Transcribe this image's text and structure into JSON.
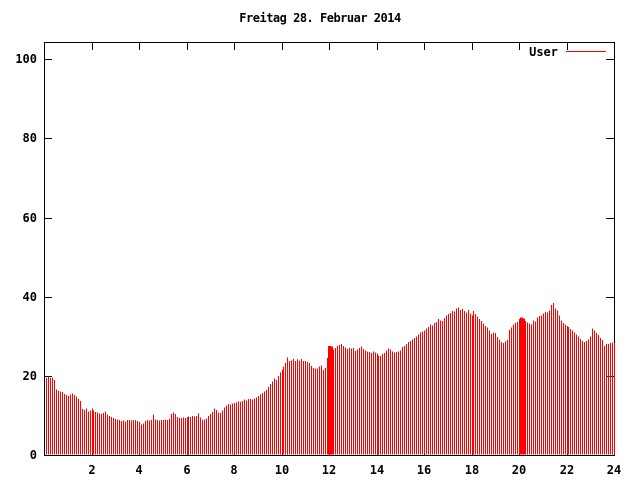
{
  "title": "Freitag 28. Februar 2014",
  "legend": {
    "label": "User",
    "position": "top-right"
  },
  "colors": {
    "series": "#ff0000",
    "axis": "#000000",
    "text": "#000000",
    "background": "#ffffff"
  },
  "chart_data": {
    "type": "bar",
    "style": "impulses",
    "title": "Freitag 28. Februar 2014",
    "xlabel": "",
    "ylabel": "",
    "x_unit": "hour of day",
    "sample_interval_minutes": 5,
    "xlim": [
      0,
      24
    ],
    "ylim": [
      0,
      104
    ],
    "x_ticks": [
      2,
      4,
      6,
      8,
      10,
      12,
      14,
      16,
      18,
      20,
      22,
      24
    ],
    "y_ticks": [
      0,
      20,
      40,
      60,
      80,
      100
    ],
    "grid": false,
    "legend_position": "top-right",
    "series": [
      {
        "name": "User",
        "color": "#ff0000",
        "first_sample_hour": 0.0833,
        "values": [
          19.5,
          19.8,
          19.4,
          19.6,
          18.9,
          16.6,
          16.2,
          16.0,
          15.9,
          15.4,
          15.1,
          14.9,
          15.3,
          15.6,
          15.2,
          14.8,
          14.1,
          13.6,
          11.6,
          11.4,
          11.7,
          11.0,
          11.3,
          11.8,
          11.2,
          10.9,
          10.7,
          10.5,
          10.4,
          10.6,
          11.0,
          10.2,
          9.9,
          9.6,
          9.4,
          9.1,
          9.0,
          8.8,
          8.6,
          8.7,
          8.5,
          8.8,
          8.9,
          8.7,
          8.9,
          8.8,
          8.6,
          8.4,
          7.7,
          7.9,
          8.6,
          8.8,
          8.7,
          8.9,
          10.2,
          9.0,
          8.8,
          8.7,
          8.9,
          8.8,
          9.0,
          8.9,
          9.1,
          10.4,
          10.7,
          10.3,
          9.6,
          9.4,
          9.3,
          9.5,
          9.4,
          9.6,
          9.7,
          9.6,
          9.8,
          9.7,
          9.9,
          10.5,
          9.5,
          8.9,
          9.0,
          9.2,
          9.8,
          10.4,
          10.9,
          11.7,
          11.4,
          10.8,
          10.6,
          11.2,
          12.0,
          12.5,
          12.9,
          12.7,
          13.0,
          13.1,
          13.3,
          13.5,
          13.4,
          13.7,
          14.0,
          13.8,
          14.1,
          14.2,
          14.0,
          14.3,
          14.5,
          14.9,
          15.3,
          15.7,
          16.1,
          16.4,
          17.2,
          18.0,
          18.6,
          19.3,
          19.0,
          20.0,
          20.8,
          21.5,
          22.3,
          23.3,
          24.6,
          23.7,
          23.9,
          24.2,
          23.8,
          24.1,
          23.9,
          24.3,
          23.8,
          23.8,
          23.5,
          23.2,
          22.5,
          22.0,
          21.8,
          21.9,
          22.3,
          22.6,
          21.5,
          22.0,
          24.5,
          27.6,
          27.4,
          26.7,
          27.0,
          27.5,
          27.8,
          28.0,
          27.6,
          27.2,
          26.8,
          27.0,
          26.9,
          27.0,
          26.3,
          26.6,
          27.0,
          27.4,
          26.8,
          26.4,
          26.2,
          26.0,
          25.8,
          26.1,
          25.9,
          25.6,
          25.2,
          25.0,
          25.5,
          25.8,
          26.4,
          26.9,
          26.6,
          26.1,
          25.9,
          26.0,
          26.2,
          26.4,
          27.3,
          27.6,
          28.0,
          28.5,
          28.8,
          29.2,
          29.6,
          30.0,
          30.5,
          30.9,
          31.2,
          31.4,
          32.0,
          32.4,
          33.0,
          32.7,
          33.4,
          33.6,
          34.3,
          34.0,
          33.8,
          34.6,
          35.2,
          35.6,
          35.9,
          36.4,
          36.2,
          37.0,
          37.3,
          36.6,
          36.9,
          36.4,
          36.0,
          36.6,
          35.8,
          35.2,
          36.4,
          35.6,
          35.0,
          34.4,
          33.8,
          33.2,
          32.6,
          32.2,
          31.4,
          30.6,
          31.0,
          30.8,
          29.8,
          29.2,
          28.5,
          28.3,
          28.7,
          29.0,
          31.6,
          32.2,
          33.0,
          33.3,
          33.6,
          34.4,
          34.8,
          34.5,
          33.8,
          33.5,
          33.2,
          33.0,
          34.0,
          33.7,
          34.8,
          35.1,
          35.3,
          35.8,
          36.1,
          36.0,
          36.5,
          37.9,
          38.4,
          37.0,
          36.5,
          35.2,
          34.0,
          33.4,
          33.0,
          32.6,
          32.3,
          31.8,
          31.5,
          31.0,
          30.5,
          29.9,
          29.3,
          28.8,
          28.5,
          28.8,
          29.2,
          30.0,
          32.0,
          31.5,
          30.8,
          30.3,
          29.5,
          29.0,
          27.5,
          28.1,
          28.0,
          28.3,
          28.4,
          28.3
        ]
      }
    ],
    "thick_bar_indices": [
      143,
      144,
      240,
      241
    ]
  }
}
